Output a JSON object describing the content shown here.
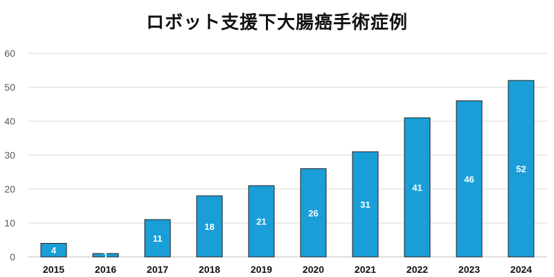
{
  "chart_data": {
    "type": "bar",
    "title": "ロボット支援下大腸癌手術症例",
    "categories": [
      "2015",
      "2016",
      "2017",
      "2018",
      "2019",
      "2020",
      "2021",
      "2022",
      "2023",
      "2024"
    ],
    "values": [
      4,
      1,
      11,
      18,
      21,
      26,
      31,
      41,
      46,
      52
    ],
    "data_labels": [
      "4",
      "1",
      "11",
      "18",
      "21",
      "26",
      "31",
      "41",
      "46",
      "52"
    ],
    "y_ticks": [
      "0",
      "10",
      "20",
      "30",
      "40",
      "50",
      "60"
    ],
    "ylim": [
      0,
      60
    ],
    "xlabel": "",
    "ylabel": "",
    "grid": true,
    "colors": {
      "bar_fill": "#1a9ed8",
      "bar_stroke": "#1f1f1f",
      "label_color": "#ffffff"
    }
  }
}
